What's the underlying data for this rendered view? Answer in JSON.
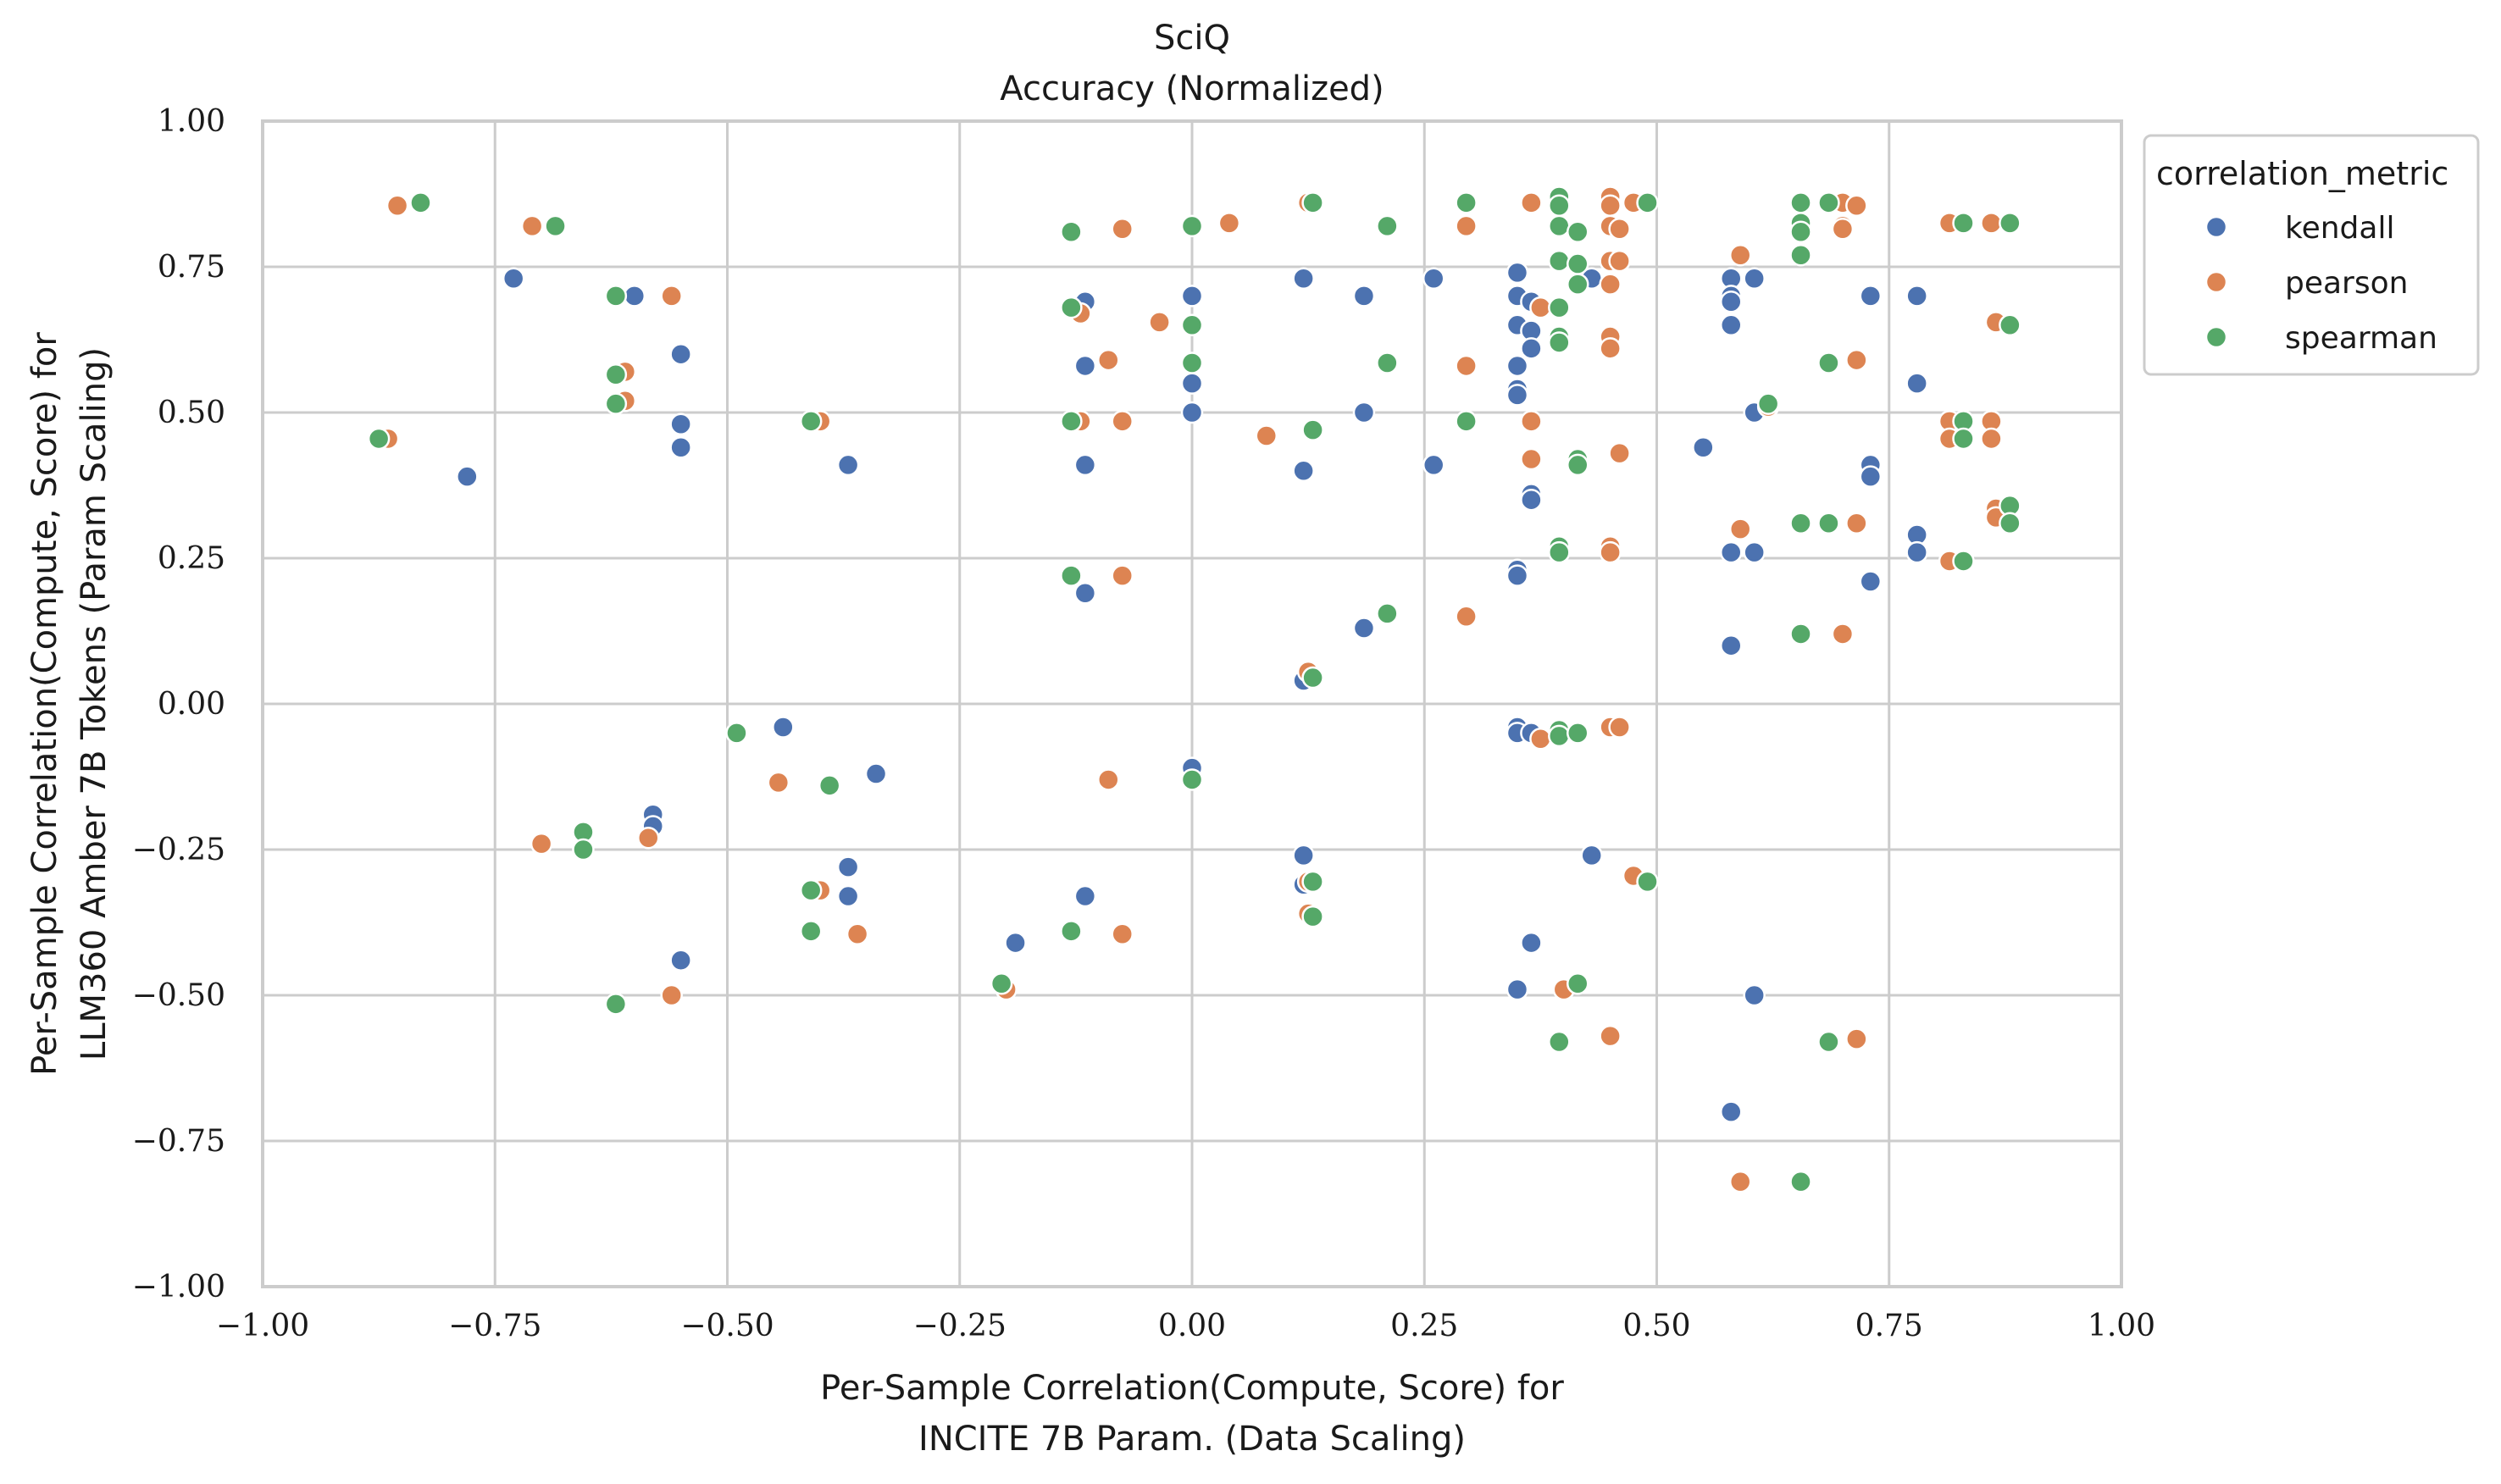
{
  "chart_data": {
    "type": "scatter",
    "title": "SciQ",
    "subtitle": "Accuracy (Normalized)",
    "xlabel": [
      "Per-Sample Correlation(Compute, Score) for",
      "INCITE 7B Param. (Data Scaling)"
    ],
    "ylabel": [
      "Per-Sample Correlation(Compute, Score) for",
      "LLM360 Amber 7B Tokens (Param Scaling)"
    ],
    "xlim": [
      -1.0,
      1.0
    ],
    "ylim": [
      -1.0,
      1.0
    ],
    "xticks": [
      "−1.00",
      "−0.75",
      "−0.50",
      "−0.25",
      "0.00",
      "0.25",
      "0.50",
      "0.75",
      "1.00"
    ],
    "yticks": [
      "1.00",
      "0.75",
      "0.50",
      "0.25",
      "0.00",
      "−0.25",
      "−0.50",
      "−0.75",
      "−1.00"
    ],
    "grid": true,
    "legend": {
      "title": "correlation_metric",
      "placement": "outside-top-right"
    },
    "series": [
      {
        "name": "kendall",
        "color": "#4c72b0",
        "points": [
          [
            -0.78,
            0.39
          ],
          [
            -0.73,
            0.73
          ],
          [
            -0.6,
            0.7
          ],
          [
            -0.55,
            0.6
          ],
          [
            -0.55,
            0.48
          ],
          [
            -0.55,
            0.44
          ],
          [
            -0.58,
            -0.19
          ],
          [
            -0.58,
            -0.21
          ],
          [
            -0.55,
            -0.44
          ],
          [
            -0.44,
            -0.04
          ],
          [
            -0.37,
            0.41
          ],
          [
            -0.34,
            -0.12
          ],
          [
            -0.37,
            -0.28
          ],
          [
            -0.37,
            -0.33
          ],
          [
            -0.19,
            -0.41
          ],
          [
            -0.115,
            0.69
          ],
          [
            -0.115,
            0.58
          ],
          [
            -0.115,
            0.41
          ],
          [
            -0.115,
            0.19
          ],
          [
            -0.115,
            -0.33
          ],
          [
            0.0,
            0.7
          ],
          [
            0.0,
            0.55
          ],
          [
            0.0,
            0.5
          ],
          [
            0.0,
            -0.11
          ],
          [
            0.12,
            0.73
          ],
          [
            0.12,
            0.4
          ],
          [
            0.12,
            0.04
          ],
          [
            0.12,
            -0.26
          ],
          [
            0.12,
            -0.31
          ],
          [
            0.185,
            0.7
          ],
          [
            0.185,
            0.5
          ],
          [
            0.185,
            0.13
          ],
          [
            0.26,
            0.73
          ],
          [
            0.26,
            0.41
          ],
          [
            0.35,
            0.74
          ],
          [
            0.35,
            0.7
          ],
          [
            0.35,
            0.65
          ],
          [
            0.35,
            0.58
          ],
          [
            0.35,
            0.54
          ],
          [
            0.35,
            0.53
          ],
          [
            0.35,
            0.23
          ],
          [
            0.35,
            0.22
          ],
          [
            0.35,
            -0.04
          ],
          [
            0.35,
            -0.05
          ],
          [
            0.35,
            -0.49
          ],
          [
            0.365,
            0.69
          ],
          [
            0.365,
            0.64
          ],
          [
            0.365,
            0.61
          ],
          [
            0.365,
            0.36
          ],
          [
            0.365,
            0.35
          ],
          [
            0.365,
            -0.05
          ],
          [
            0.365,
            -0.41
          ],
          [
            0.43,
            0.73
          ],
          [
            0.43,
            -0.26
          ],
          [
            0.55,
            0.44
          ],
          [
            0.58,
            0.73
          ],
          [
            0.58,
            0.7
          ],
          [
            0.58,
            0.69
          ],
          [
            0.58,
            0.65
          ],
          [
            0.58,
            0.26
          ],
          [
            0.58,
            0.1
          ],
          [
            0.58,
            -0.7
          ],
          [
            0.605,
            0.73
          ],
          [
            0.605,
            0.5
          ],
          [
            0.605,
            0.26
          ],
          [
            0.605,
            -0.5
          ],
          [
            0.73,
            0.7
          ],
          [
            0.73,
            0.41
          ],
          [
            0.73,
            0.39
          ],
          [
            0.73,
            0.21
          ],
          [
            0.78,
            0.7
          ],
          [
            0.78,
            0.55
          ],
          [
            0.78,
            0.29
          ],
          [
            0.78,
            0.26
          ]
        ]
      },
      {
        "name": "pearson",
        "color": "#dd8452",
        "points": [
          [
            -0.865,
            0.455
          ],
          [
            -0.855,
            0.855
          ],
          [
            -0.71,
            0.82
          ],
          [
            -0.7,
            -0.24
          ],
          [
            -0.61,
            0.57
          ],
          [
            -0.61,
            0.52
          ],
          [
            -0.56,
            0.7
          ],
          [
            -0.56,
            -0.5
          ],
          [
            -0.585,
            -0.23
          ],
          [
            -0.49,
            -0.05
          ],
          [
            -0.445,
            -0.135
          ],
          [
            -0.4,
            0.485
          ],
          [
            -0.4,
            -0.32
          ],
          [
            -0.36,
            -0.395
          ],
          [
            -0.2,
            -0.49
          ],
          [
            -0.12,
            0.67
          ],
          [
            -0.12,
            0.485
          ],
          [
            -0.09,
            0.59
          ],
          [
            -0.09,
            -0.13
          ],
          [
            -0.075,
            0.815
          ],
          [
            -0.075,
            0.485
          ],
          [
            -0.075,
            0.22
          ],
          [
            -0.075,
            -0.395
          ],
          [
            -0.035,
            0.655
          ],
          [
            0.04,
            0.825
          ],
          [
            0.08,
            0.46
          ],
          [
            0.125,
            0.86
          ],
          [
            0.125,
            0.055
          ],
          [
            0.125,
            -0.305
          ],
          [
            0.125,
            -0.36
          ],
          [
            0.295,
            0.82
          ],
          [
            0.295,
            0.58
          ],
          [
            0.295,
            0.15
          ],
          [
            0.365,
            0.86
          ],
          [
            0.365,
            0.485
          ],
          [
            0.365,
            0.42
          ],
          [
            0.375,
            0.68
          ],
          [
            0.375,
            -0.06
          ],
          [
            0.4,
            -0.49
          ],
          [
            0.45,
            0.87
          ],
          [
            0.45,
            0.855
          ],
          [
            0.45,
            0.82
          ],
          [
            0.45,
            0.76
          ],
          [
            0.45,
            0.72
          ],
          [
            0.45,
            0.63
          ],
          [
            0.45,
            0.61
          ],
          [
            0.45,
            0.27
          ],
          [
            0.45,
            0.26
          ],
          [
            0.45,
            -0.04
          ],
          [
            0.45,
            -0.57
          ],
          [
            0.46,
            0.815
          ],
          [
            0.46,
            0.76
          ],
          [
            0.46,
            0.43
          ],
          [
            0.46,
            -0.04
          ],
          [
            0.475,
            0.86
          ],
          [
            0.475,
            -0.295
          ],
          [
            0.59,
            0.77
          ],
          [
            0.59,
            0.3
          ],
          [
            0.59,
            -0.82
          ],
          [
            0.62,
            0.51
          ],
          [
            0.7,
            0.86
          ],
          [
            0.7,
            0.82
          ],
          [
            0.7,
            0.815
          ],
          [
            0.7,
            0.12
          ],
          [
            0.715,
            0.855
          ],
          [
            0.715,
            0.59
          ],
          [
            0.715,
            0.31
          ],
          [
            0.715,
            -0.575
          ],
          [
            0.815,
            0.825
          ],
          [
            0.815,
            0.485
          ],
          [
            0.815,
            0.455
          ],
          [
            0.815,
            0.245
          ],
          [
            0.86,
            0.825
          ],
          [
            0.86,
            0.485
          ],
          [
            0.86,
            0.455
          ],
          [
            0.865,
            0.655
          ],
          [
            0.865,
            0.335
          ],
          [
            0.865,
            0.32
          ]
        ]
      },
      {
        "name": "spearman",
        "color": "#55a868",
        "points": [
          [
            -0.875,
            0.455
          ],
          [
            -0.83,
            0.86
          ],
          [
            -0.685,
            0.82
          ],
          [
            -0.655,
            -0.22
          ],
          [
            -0.655,
            -0.25
          ],
          [
            -0.62,
            0.7
          ],
          [
            -0.62,
            0.565
          ],
          [
            -0.62,
            0.515
          ],
          [
            -0.62,
            -0.515
          ],
          [
            -0.49,
            -0.05
          ],
          [
            -0.41,
            0.485
          ],
          [
            -0.41,
            -0.32
          ],
          [
            -0.41,
            -0.39
          ],
          [
            -0.39,
            -0.14
          ],
          [
            -0.205,
            -0.48
          ],
          [
            -0.13,
            0.81
          ],
          [
            -0.13,
            0.68
          ],
          [
            -0.13,
            0.485
          ],
          [
            -0.13,
            0.22
          ],
          [
            -0.13,
            -0.39
          ],
          [
            0.0,
            0.82
          ],
          [
            0.0,
            0.65
          ],
          [
            0.0,
            0.585
          ],
          [
            0.0,
            -0.13
          ],
          [
            0.13,
            0.86
          ],
          [
            0.13,
            0.47
          ],
          [
            0.13,
            0.045
          ],
          [
            0.13,
            -0.305
          ],
          [
            0.13,
            -0.365
          ],
          [
            0.21,
            0.82
          ],
          [
            0.21,
            0.585
          ],
          [
            0.21,
            0.155
          ],
          [
            0.295,
            0.86
          ],
          [
            0.295,
            0.485
          ],
          [
            0.395,
            0.87
          ],
          [
            0.395,
            0.855
          ],
          [
            0.395,
            0.82
          ],
          [
            0.395,
            0.76
          ],
          [
            0.395,
            0.68
          ],
          [
            0.395,
            0.63
          ],
          [
            0.395,
            0.62
          ],
          [
            0.395,
            0.27
          ],
          [
            0.395,
            0.26
          ],
          [
            0.395,
            -0.045
          ],
          [
            0.395,
            -0.055
          ],
          [
            0.395,
            -0.58
          ],
          [
            0.415,
            0.81
          ],
          [
            0.415,
            0.755
          ],
          [
            0.415,
            0.72
          ],
          [
            0.415,
            0.42
          ],
          [
            0.415,
            0.41
          ],
          [
            0.415,
            -0.05
          ],
          [
            0.415,
            -0.48
          ],
          [
            0.49,
            0.86
          ],
          [
            0.49,
            -0.305
          ],
          [
            0.655,
            0.86
          ],
          [
            0.655,
            0.825
          ],
          [
            0.655,
            0.81
          ],
          [
            0.655,
            0.77
          ],
          [
            0.655,
            0.31
          ],
          [
            0.655,
            0.12
          ],
          [
            0.655,
            -0.82
          ],
          [
            0.62,
            0.515
          ],
          [
            0.685,
            0.86
          ],
          [
            0.685,
            0.585
          ],
          [
            0.685,
            0.31
          ],
          [
            0.685,
            -0.58
          ],
          [
            0.83,
            0.825
          ],
          [
            0.83,
            0.485
          ],
          [
            0.83,
            0.455
          ],
          [
            0.83,
            0.245
          ],
          [
            0.88,
            0.825
          ],
          [
            0.88,
            0.65
          ],
          [
            0.88,
            0.34
          ],
          [
            0.88,
            0.31
          ]
        ]
      }
    ]
  }
}
